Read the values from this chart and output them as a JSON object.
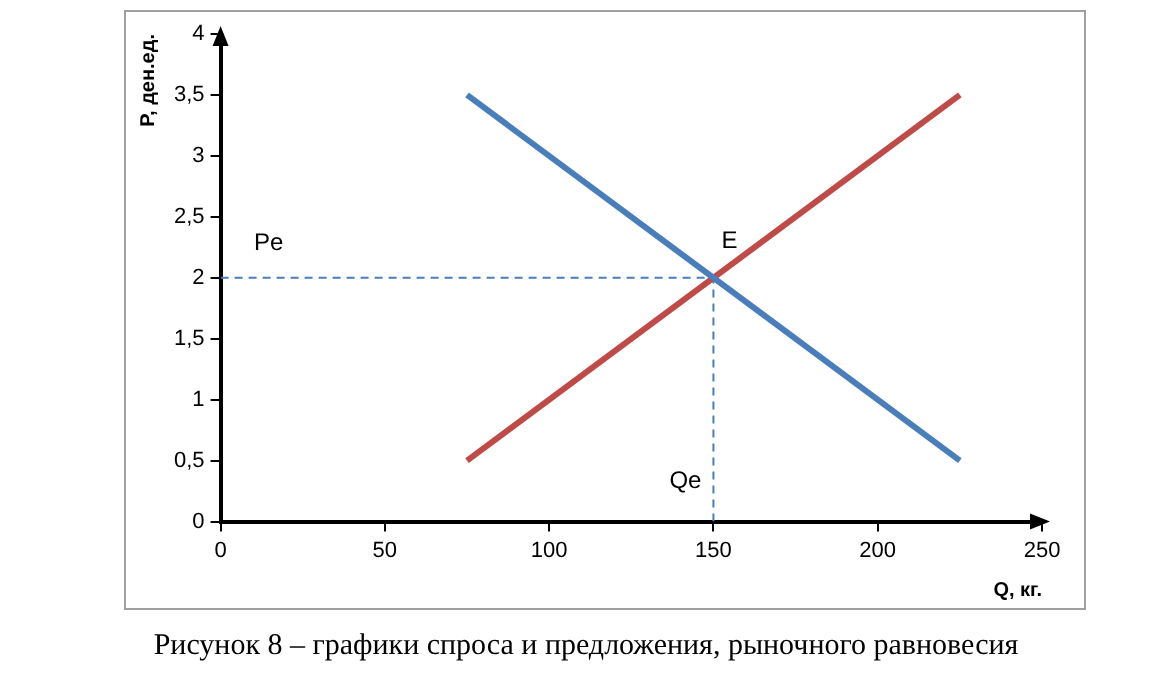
{
  "chart_data": {
    "type": "line",
    "xlabel": "Q, кг.",
    "ylabel": "P, ден.ед.",
    "xlim": [
      0,
      250
    ],
    "xticks": [
      0,
      50,
      100,
      150,
      200,
      250
    ],
    "ylim": [
      0,
      4
    ],
    "yticks": [
      0,
      {
        "value": 0.5,
        "label": "0,5"
      },
      1,
      {
        "value": 1.5,
        "label": "1,5"
      },
      2,
      {
        "value": 2.5,
        "label": "2,5"
      },
      3,
      {
        "value": 3.5,
        "label": "3,5"
      },
      4
    ],
    "legend": false,
    "marker": "none",
    "series": [
      {
        "color": "#4a7ebb",
        "x": [
          75,
          225
        ],
        "values": [
          3.5,
          0.5
        ]
      },
      {
        "color": "#be4b48",
        "x": [
          75,
          225
        ],
        "values": [
          0.5,
          3.5
        ]
      },
      {
        "name": "Pe",
        "color": "#4a7ebb",
        "x": [
          0,
          150
        ],
        "values": [
          2,
          2
        ],
        "line_style": "dashed"
      },
      {
        "name": "Qe",
        "color": "#4a7ebb",
        "x": [
          150,
          150
        ],
        "values": [
          0,
          2
        ],
        "line_style": "dashed"
      }
    ],
    "annotations": [
      {
        "text": "E",
        "x": 150,
        "y": 2
      },
      "Рисунок 8 – графики спроса и предложения, рыночного равновесия"
    ]
  }
}
